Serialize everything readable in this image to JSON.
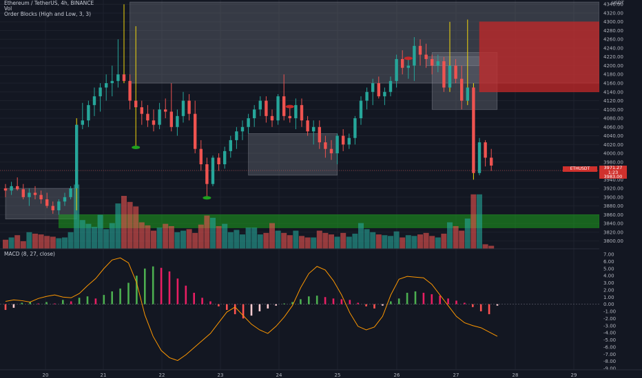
{
  "header": {
    "symbol_line": "Ethereum / TetherUS, 4h, BINANCE",
    "vol_label": "Vol",
    "indicator_label": "Order Blocks (High and Low, 3, 3)",
    "macd_label": "MACD (8, 27, close)"
  },
  "currency_label": "USDT",
  "ticker_tag": "ETHUSDT",
  "price_tag": [
    "3971.27",
    "1:23",
    "3983.00"
  ],
  "colors": {
    "background": "#131722",
    "bull": "#26a69a",
    "bear": "#ef5350",
    "wick_highlight": "#f5d90a",
    "macd_line": "#ff9800",
    "order_block_gray": "#787b86",
    "order_block_green": "#1ea21e",
    "order_block_red": "#c62828"
  },
  "chart_data": [
    {
      "type": "candlestick",
      "title": "Ethereum / TetherUS, 4h, BINANCE",
      "y_ticks": [
        "4340.00",
        "4320.00",
        "4300.00",
        "4280.00",
        "4260.00",
        "4240.00",
        "4220.00",
        "4200.00",
        "4180.00",
        "4160.00",
        "4140.00",
        "4120.00",
        "4100.00",
        "4080.00",
        "4060.00",
        "4040.00",
        "4020.00",
        "4000.00",
        "3980.00",
        "3960.00",
        "3940.00",
        "3920.00",
        "3900.00",
        "3880.00",
        "3860.00",
        "3840.00",
        "3820.00",
        "3800.00"
      ],
      "x_ticks": [
        "20",
        "21",
        "22",
        "23",
        "24",
        "25",
        "26",
        "27",
        "28",
        "29"
      ],
      "ylim": [
        3790,
        4345
      ],
      "candles": [
        {
          "o": 3920,
          "h": 3930,
          "l": 3900,
          "c": 3915
        },
        {
          "o": 3915,
          "h": 3935,
          "l": 3905,
          "c": 3925
        },
        {
          "o": 3925,
          "h": 3945,
          "l": 3915,
          "c": 3918
        },
        {
          "o": 3918,
          "h": 3930,
          "l": 3895,
          "c": 3900
        },
        {
          "o": 3900,
          "h": 3920,
          "l": 3880,
          "c": 3910
        },
        {
          "o": 3910,
          "h": 3925,
          "l": 3895,
          "c": 3905
        },
        {
          "o": 3905,
          "h": 3915,
          "l": 3885,
          "c": 3895
        },
        {
          "o": 3895,
          "h": 3910,
          "l": 3875,
          "c": 3880
        },
        {
          "o": 3880,
          "h": 3890,
          "l": 3862,
          "c": 3870
        },
        {
          "o": 3870,
          "h": 3895,
          "l": 3860,
          "c": 3890
        },
        {
          "o": 3890,
          "h": 3910,
          "l": 3880,
          "c": 3900
        },
        {
          "o": 3900,
          "h": 3925,
          "l": 3895,
          "c": 3920
        },
        {
          "o": 3920,
          "h": 4080,
          "l": 3870,
          "c": 4065
        },
        {
          "o": 4065,
          "h": 4115,
          "l": 4055,
          "c": 4075
        },
        {
          "o": 4075,
          "h": 4120,
          "l": 4060,
          "c": 4110
        },
        {
          "o": 4110,
          "h": 4150,
          "l": 4085,
          "c": 4130
        },
        {
          "o": 4130,
          "h": 4160,
          "l": 4095,
          "c": 4150
        },
        {
          "o": 4150,
          "h": 4180,
          "l": 4120,
          "c": 4160
        },
        {
          "o": 4160,
          "h": 4200,
          "l": 4130,
          "c": 4165
        },
        {
          "o": 4165,
          "h": 4260,
          "l": 4150,
          "c": 4180
        },
        {
          "o": 4180,
          "h": 4340,
          "l": 4160,
          "c": 4165
        },
        {
          "o": 4165,
          "h": 4180,
          "l": 4100,
          "c": 4120
        },
        {
          "o": 4120,
          "h": 4290,
          "l": 4015,
          "c": 4105
        },
        {
          "o": 4105,
          "h": 4120,
          "l": 4065,
          "c": 4090
        },
        {
          "o": 4090,
          "h": 4110,
          "l": 4060,
          "c": 4075
        },
        {
          "o": 4075,
          "h": 4100,
          "l": 4050,
          "c": 4065
        },
        {
          "o": 4065,
          "h": 4115,
          "l": 4055,
          "c": 4100
        },
        {
          "o": 4100,
          "h": 4125,
          "l": 4080,
          "c": 4095
        },
        {
          "o": 4095,
          "h": 4160,
          "l": 4050,
          "c": 4060
        },
        {
          "o": 4060,
          "h": 4100,
          "l": 4040,
          "c": 4085
        },
        {
          "o": 4085,
          "h": 4140,
          "l": 4070,
          "c": 4120
        },
        {
          "o": 4120,
          "h": 4135,
          "l": 4075,
          "c": 4090
        },
        {
          "o": 4090,
          "h": 4120,
          "l": 4000,
          "c": 4010
        },
        {
          "o": 4010,
          "h": 4030,
          "l": 3960,
          "c": 3975
        },
        {
          "o": 3975,
          "h": 3990,
          "l": 3900,
          "c": 3930
        },
        {
          "o": 3930,
          "h": 3995,
          "l": 3925,
          "c": 3990
        },
        {
          "o": 3990,
          "h": 4000,
          "l": 3960,
          "c": 3975
        },
        {
          "o": 3975,
          "h": 4015,
          "l": 3965,
          "c": 4005
        },
        {
          "o": 4005,
          "h": 4040,
          "l": 3990,
          "c": 4030
        },
        {
          "o": 4030,
          "h": 4060,
          "l": 4010,
          "c": 4050
        },
        {
          "o": 4050,
          "h": 4075,
          "l": 4030,
          "c": 4060
        },
        {
          "o": 4060,
          "h": 4090,
          "l": 4045,
          "c": 4080
        },
        {
          "o": 4080,
          "h": 4110,
          "l": 4060,
          "c": 4100
        },
        {
          "o": 4100,
          "h": 4130,
          "l": 4085,
          "c": 4120
        },
        {
          "o": 4120,
          "h": 4130,
          "l": 4070,
          "c": 4085
        },
        {
          "o": 4085,
          "h": 4100,
          "l": 4060,
          "c": 4075
        },
        {
          "o": 4075,
          "h": 4135,
          "l": 4065,
          "c": 4130
        },
        {
          "o": 4130,
          "h": 4180,
          "l": 4075,
          "c": 4085
        },
        {
          "o": 4085,
          "h": 4105,
          "l": 4070,
          "c": 4080
        },
        {
          "o": 4080,
          "h": 4125,
          "l": 4055,
          "c": 4110
        },
        {
          "o": 4110,
          "h": 4125,
          "l": 4060,
          "c": 4075
        },
        {
          "o": 4075,
          "h": 4085,
          "l": 4040,
          "c": 4050
        },
        {
          "o": 4050,
          "h": 4075,
          "l": 4020,
          "c": 4060
        },
        {
          "o": 4060,
          "h": 4075,
          "l": 4010,
          "c": 4025
        },
        {
          "o": 4025,
          "h": 4040,
          "l": 3990,
          "c": 4010
        },
        {
          "o": 4010,
          "h": 4030,
          "l": 3985,
          "c": 4000
        },
        {
          "o": 4000,
          "h": 4045,
          "l": 3975,
          "c": 4040
        },
        {
          "o": 4040,
          "h": 4055,
          "l": 4005,
          "c": 4020
        },
        {
          "o": 4020,
          "h": 4045,
          "l": 4010,
          "c": 4035
        },
        {
          "o": 4035,
          "h": 4085,
          "l": 4020,
          "c": 4080
        },
        {
          "o": 4080,
          "h": 4130,
          "l": 4065,
          "c": 4120
        },
        {
          "o": 4120,
          "h": 4150,
          "l": 4100,
          "c": 4140
        },
        {
          "o": 4140,
          "h": 4170,
          "l": 4110,
          "c": 4160
        },
        {
          "o": 4160,
          "h": 4175,
          "l": 4125,
          "c": 4130
        },
        {
          "o": 4130,
          "h": 4150,
          "l": 4110,
          "c": 4140
        },
        {
          "o": 4140,
          "h": 4175,
          "l": 4130,
          "c": 4165
        },
        {
          "o": 4165,
          "h": 4225,
          "l": 4150,
          "c": 4215
        },
        {
          "o": 4215,
          "h": 4235,
          "l": 4180,
          "c": 4195
        },
        {
          "o": 4195,
          "h": 4215,
          "l": 4170,
          "c": 4200
        },
        {
          "o": 4200,
          "h": 4265,
          "l": 4165,
          "c": 4245
        },
        {
          "o": 4245,
          "h": 4260,
          "l": 4200,
          "c": 4225
        },
        {
          "o": 4225,
          "h": 4250,
          "l": 4195,
          "c": 4215
        },
        {
          "o": 4215,
          "h": 4225,
          "l": 4180,
          "c": 4200
        },
        {
          "o": 4200,
          "h": 4225,
          "l": 4185,
          "c": 4210
        },
        {
          "o": 4210,
          "h": 4220,
          "l": 4140,
          "c": 4150
        },
        {
          "o": 4150,
          "h": 4300,
          "l": 4140,
          "c": 4200
        },
        {
          "o": 4200,
          "h": 4215,
          "l": 4160,
          "c": 4170
        },
        {
          "o": 4170,
          "h": 4200,
          "l": 4100,
          "c": 4120
        },
        {
          "o": 4120,
          "h": 4305,
          "l": 4110,
          "c": 4150
        },
        {
          "o": 4150,
          "h": 4160,
          "l": 3940,
          "c": 3955
        },
        {
          "o": 3955,
          "h": 4035,
          "l": 3950,
          "c": 4025
        },
        {
          "o": 4025,
          "h": 4030,
          "l": 3970,
          "c": 3990
        },
        {
          "o": 3990,
          "h": 4010,
          "l": 3960,
          "c": 3972
        }
      ],
      "volume_ylim": [
        0,
        100
      ],
      "volume": [
        12,
        15,
        18,
        10,
        22,
        20,
        19,
        17,
        16,
        14,
        15,
        22,
        85,
        38,
        33,
        29,
        45,
        26,
        34,
        60,
        70,
        62,
        56,
        35,
        31,
        24,
        28,
        33,
        30,
        22,
        24,
        26,
        21,
        32,
        44,
        41,
        30,
        33,
        22,
        25,
        19,
        28,
        28,
        19,
        21,
        34,
        24,
        21,
        18,
        24,
        17,
        15,
        15,
        24,
        21,
        19,
        16,
        21,
        16,
        20,
        34,
        26,
        22,
        19,
        18,
        17,
        23,
        15,
        18,
        17,
        19,
        21,
        17,
        15,
        20,
        35,
        30,
        24,
        40,
        72,
        72,
        6,
        4
      ],
      "markers": [
        {
          "type": "low",
          "candle": 22
        },
        {
          "type": "low",
          "candle": 34
        },
        {
          "type": "high",
          "candle": 48
        },
        {
          "type": "high",
          "candle": 68
        }
      ],
      "order_blocks": [
        {
          "kind": "gray",
          "x_from": 21,
          "x_to": 102,
          "y_top": 4345,
          "y_bottom": 4160
        },
        {
          "kind": "gray",
          "x_from": 41,
          "x_to": 56,
          "y_top": 4045,
          "y_bottom": 3950
        },
        {
          "kind": "gray",
          "x_from": 0,
          "x_to": 12,
          "y_top": 3920,
          "y_bottom": 3850
        },
        {
          "kind": "gray",
          "x_from": 72,
          "x_to": 83,
          "y_top": 4230,
          "y_bottom": 4100
        },
        {
          "kind": "gray",
          "x_from": 71,
          "x_to": 80,
          "y_top": 4220,
          "y_bottom": 4200
        },
        {
          "kind": "green",
          "x_from": 9,
          "x_to": 102,
          "y_top": 3860,
          "y_bottom": 3830
        },
        {
          "kind": "red",
          "x_from": 80,
          "x_to": 102,
          "y_top": 4300,
          "y_bottom": 4140
        }
      ]
    },
    {
      "type": "bar+line",
      "title": "MACD (8, 27, close)",
      "ylim": [
        -9,
        7
      ],
      "y_ticks": [
        "7.00",
        "6.00",
        "5.00",
        "4.00",
        "3.00",
        "2.00",
        "1.00",
        "0.00",
        "-1.00",
        "-2.00",
        "-3.00",
        "-4.00",
        "-5.00",
        "-6.00",
        "-7.00",
        "-8.00",
        "-9.00"
      ],
      "histogram": [
        -0.8,
        -0.5,
        0.2,
        0.3,
        0.1,
        0.3,
        0.1,
        0.6,
        0.4,
        0.9,
        1.1,
        0.8,
        1.3,
        1.8,
        2.2,
        3.0,
        4.0,
        5.0,
        5.3,
        5.1,
        4.6,
        3.6,
        2.6,
        1.6,
        0.9,
        0.4,
        -0.3,
        -0.8,
        -1.4,
        -2.0,
        -1.6,
        -1.0,
        -0.6,
        -0.2,
        0.1,
        0.3,
        0.7,
        1.1,
        1.2,
        1.0,
        0.8,
        0.7,
        0.6,
        0.2,
        -0.3,
        -0.6,
        -0.2,
        0.4,
        0.8,
        1.6,
        1.8,
        1.6,
        1.4,
        1.2,
        0.8,
        0.5,
        0.2,
        -0.4,
        -1.0,
        -1.4,
        -0.2
      ],
      "line": [
        0.4,
        0.6,
        0.5,
        0.3,
        0.8,
        1.1,
        1.3,
        1.0,
        0.9,
        1.5,
        2.6,
        3.6,
        5.0,
        6.2,
        6.5,
        5.8,
        3.0,
        -1.5,
        -4.5,
        -6.5,
        -7.5,
        -7.9,
        -7.1,
        -6.1,
        -5.1,
        -4.1,
        -2.6,
        -1.1,
        -0.4,
        -1.6,
        -2.8,
        -3.6,
        -4.1,
        -3.1,
        -1.8,
        -0.2,
        2.3,
        4.3,
        5.3,
        4.8,
        3.3,
        1.3,
        -1.2,
        -3.1,
        -3.6,
        -3.2,
        -1.7,
        1.3,
        3.5,
        3.9,
        3.8,
        3.7,
        2.8,
        1.3,
        -0.2,
        -1.7,
        -2.6,
        -3.0,
        -3.3,
        -3.9,
        -4.5
      ],
      "zero_line": 0
    }
  ]
}
